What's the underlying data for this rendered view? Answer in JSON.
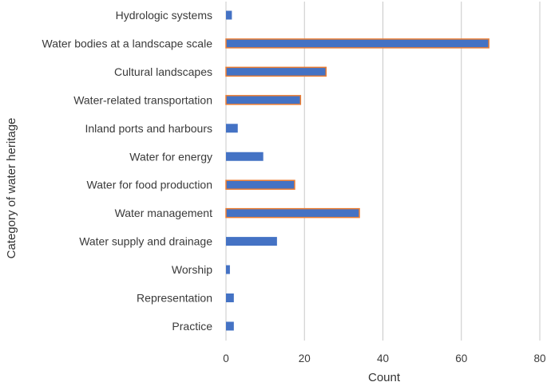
{
  "chart_data": {
    "type": "bar",
    "orientation": "horizontal",
    "categories": [
      "Hydrologic systems",
      "Water bodies at a landscape scale",
      "Cultural landscapes",
      "Water-related transportation",
      "Inland ports and harbours",
      "Water for energy",
      "Water for food production",
      "Water management",
      "Water supply and drainage",
      "Worship",
      "Representation",
      "Practice"
    ],
    "values": [
      1.5,
      67,
      25.5,
      19,
      3,
      9.5,
      17.5,
      34,
      13,
      1,
      2,
      2
    ],
    "highlighted": [
      false,
      true,
      true,
      true,
      false,
      false,
      true,
      true,
      false,
      false,
      false,
      false
    ],
    "title": "",
    "xlabel": "Count",
    "ylabel": "Category of water heritage",
    "xlim": [
      0,
      80
    ],
    "xticks": [
      0,
      20,
      40,
      60,
      80
    ],
    "grid": "vertical",
    "legend": "none",
    "colors": {
      "bar": "#4472c4",
      "highlight_outline": "#ed7d31",
      "grid": "#c8c8c8",
      "text": "#3a3a3a"
    }
  }
}
